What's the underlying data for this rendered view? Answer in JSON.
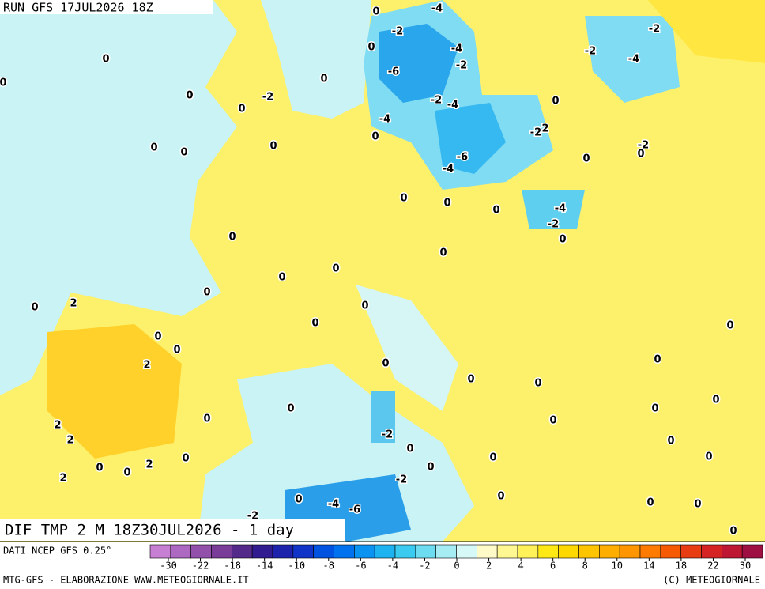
{
  "header": {
    "run": "RUN GFS 17JUL2026 18Z",
    "title": "DIF TMP 2 M 18Z30JUL2026 - 1 day"
  },
  "map": {
    "contour_labels": [
      "0",
      "-4",
      "-2",
      "-4",
      "0",
      "0",
      "-6",
      "-2",
      "0",
      "0",
      "-2",
      "0",
      "-2",
      "-4",
      "-4",
      "0",
      "-2",
      "2",
      "0",
      "0",
      "0",
      "0",
      "-6",
      "-4",
      "-2",
      "0",
      "0",
      "-2",
      "-2",
      "-4",
      "0",
      "0",
      "0",
      "-4",
      "-2",
      "0",
      "0",
      "0",
      "0",
      "0",
      "0",
      "0",
      "2",
      "0",
      "0",
      "0",
      "0",
      "0",
      "2",
      "0",
      "0",
      "0",
      "0",
      "0",
      "0",
      "0",
      "0",
      "0",
      "2",
      "2",
      "-2",
      "0",
      "0",
      "0",
      "2",
      "0",
      "0",
      "0",
      "0",
      "0",
      "-2",
      "2",
      "0",
      "0",
      "-4",
      "-6",
      "0",
      "0",
      "0",
      "-2",
      "0"
    ]
  },
  "colorbar": {
    "colors": [
      "#c77fd4",
      "#ad68c2",
      "#9350ab",
      "#7a3c99",
      "#532a8a",
      "#311b91",
      "#1c22ab",
      "#1034c8",
      "#0052e0",
      "#0072ef",
      "#0b93f2",
      "#1db3f1",
      "#3bcbf0",
      "#6ddcf1",
      "#a6ecf3",
      "#d6f9f8",
      "#fffbc9",
      "#fff791",
      "#fff159",
      "#ffe914",
      "#ffd800",
      "#ffc400",
      "#ffae00",
      "#ff9600",
      "#ff7a00",
      "#f75a05",
      "#e83c12",
      "#d52222",
      "#be1733",
      "#9e1041"
    ],
    "ticks": [
      -30,
      -22,
      -18,
      -14,
      -10,
      -8,
      -6,
      -4,
      -2,
      0,
      2,
      4,
      6,
      8,
      10,
      14,
      18,
      22,
      30
    ]
  },
  "footer": {
    "source": "DATI NCEP GFS 0.25°",
    "credit": "MTG-GFS - ELABORAZIONE WWW.METEOGIORNALE.IT",
    "copyright": "(C) METEOGIORNALE"
  }
}
